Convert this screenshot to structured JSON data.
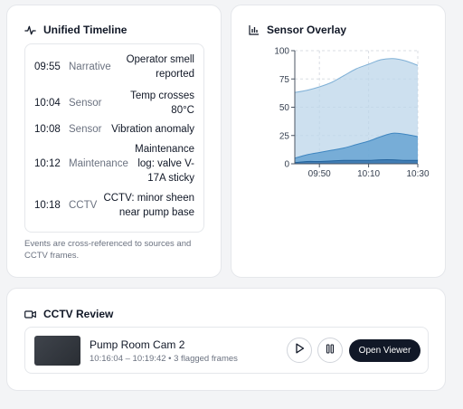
{
  "timeline": {
    "title": "Unified Timeline",
    "events": [
      {
        "time": "09:55",
        "source": "Narrative",
        "text": "Operator smell reported"
      },
      {
        "time": "10:04",
        "source": "Sensor",
        "text": "Temp crosses 80°C"
      },
      {
        "time": "10:08",
        "source": "Sensor",
        "text": "Vibration anomaly"
      },
      {
        "time": "10:12",
        "source": "Maintenance",
        "text": "Maintenance log: valve V-17A sticky"
      },
      {
        "time": "10:18",
        "source": "CCTV",
        "text": "CCTV: minor sheen near pump base"
      }
    ],
    "footnote": "Events are cross-referenced to sources and CCTV frames."
  },
  "sensor": {
    "title": "Sensor Overlay"
  },
  "chart_data": {
    "type": "area",
    "x": [
      "09:40",
      "09:45",
      "09:50",
      "09:55",
      "10:00",
      "10:05",
      "10:10",
      "10:15",
      "10:20",
      "10:25",
      "10:30"
    ],
    "x_ticks": [
      "09:50",
      "10:10",
      "10:30"
    ],
    "y_ticks": [
      "0",
      "25",
      "50",
      "75",
      "100"
    ],
    "ylim": [
      0,
      100
    ],
    "grid": true,
    "series": [
      {
        "values": [
          63,
          65,
          68,
          72,
          78,
          84,
          88,
          92,
          93,
          91,
          87
        ],
        "color": "#bcd6ea"
      },
      {
        "values": [
          5,
          8,
          10,
          12,
          14,
          17,
          20,
          24,
          27,
          26,
          24
        ],
        "color": "#5a9ccf"
      },
      {
        "values": [
          1,
          2,
          2,
          2.5,
          3,
          3,
          3,
          3.5,
          3.5,
          3,
          3
        ],
        "color": "#2f6ea8"
      }
    ]
  },
  "cctv": {
    "title": "CCTV Review",
    "camera_name": "Pump Room Cam 2",
    "meta": "10:16:04 – 10:19:42 • 3 flagged frames",
    "open_label": "Open Viewer"
  }
}
